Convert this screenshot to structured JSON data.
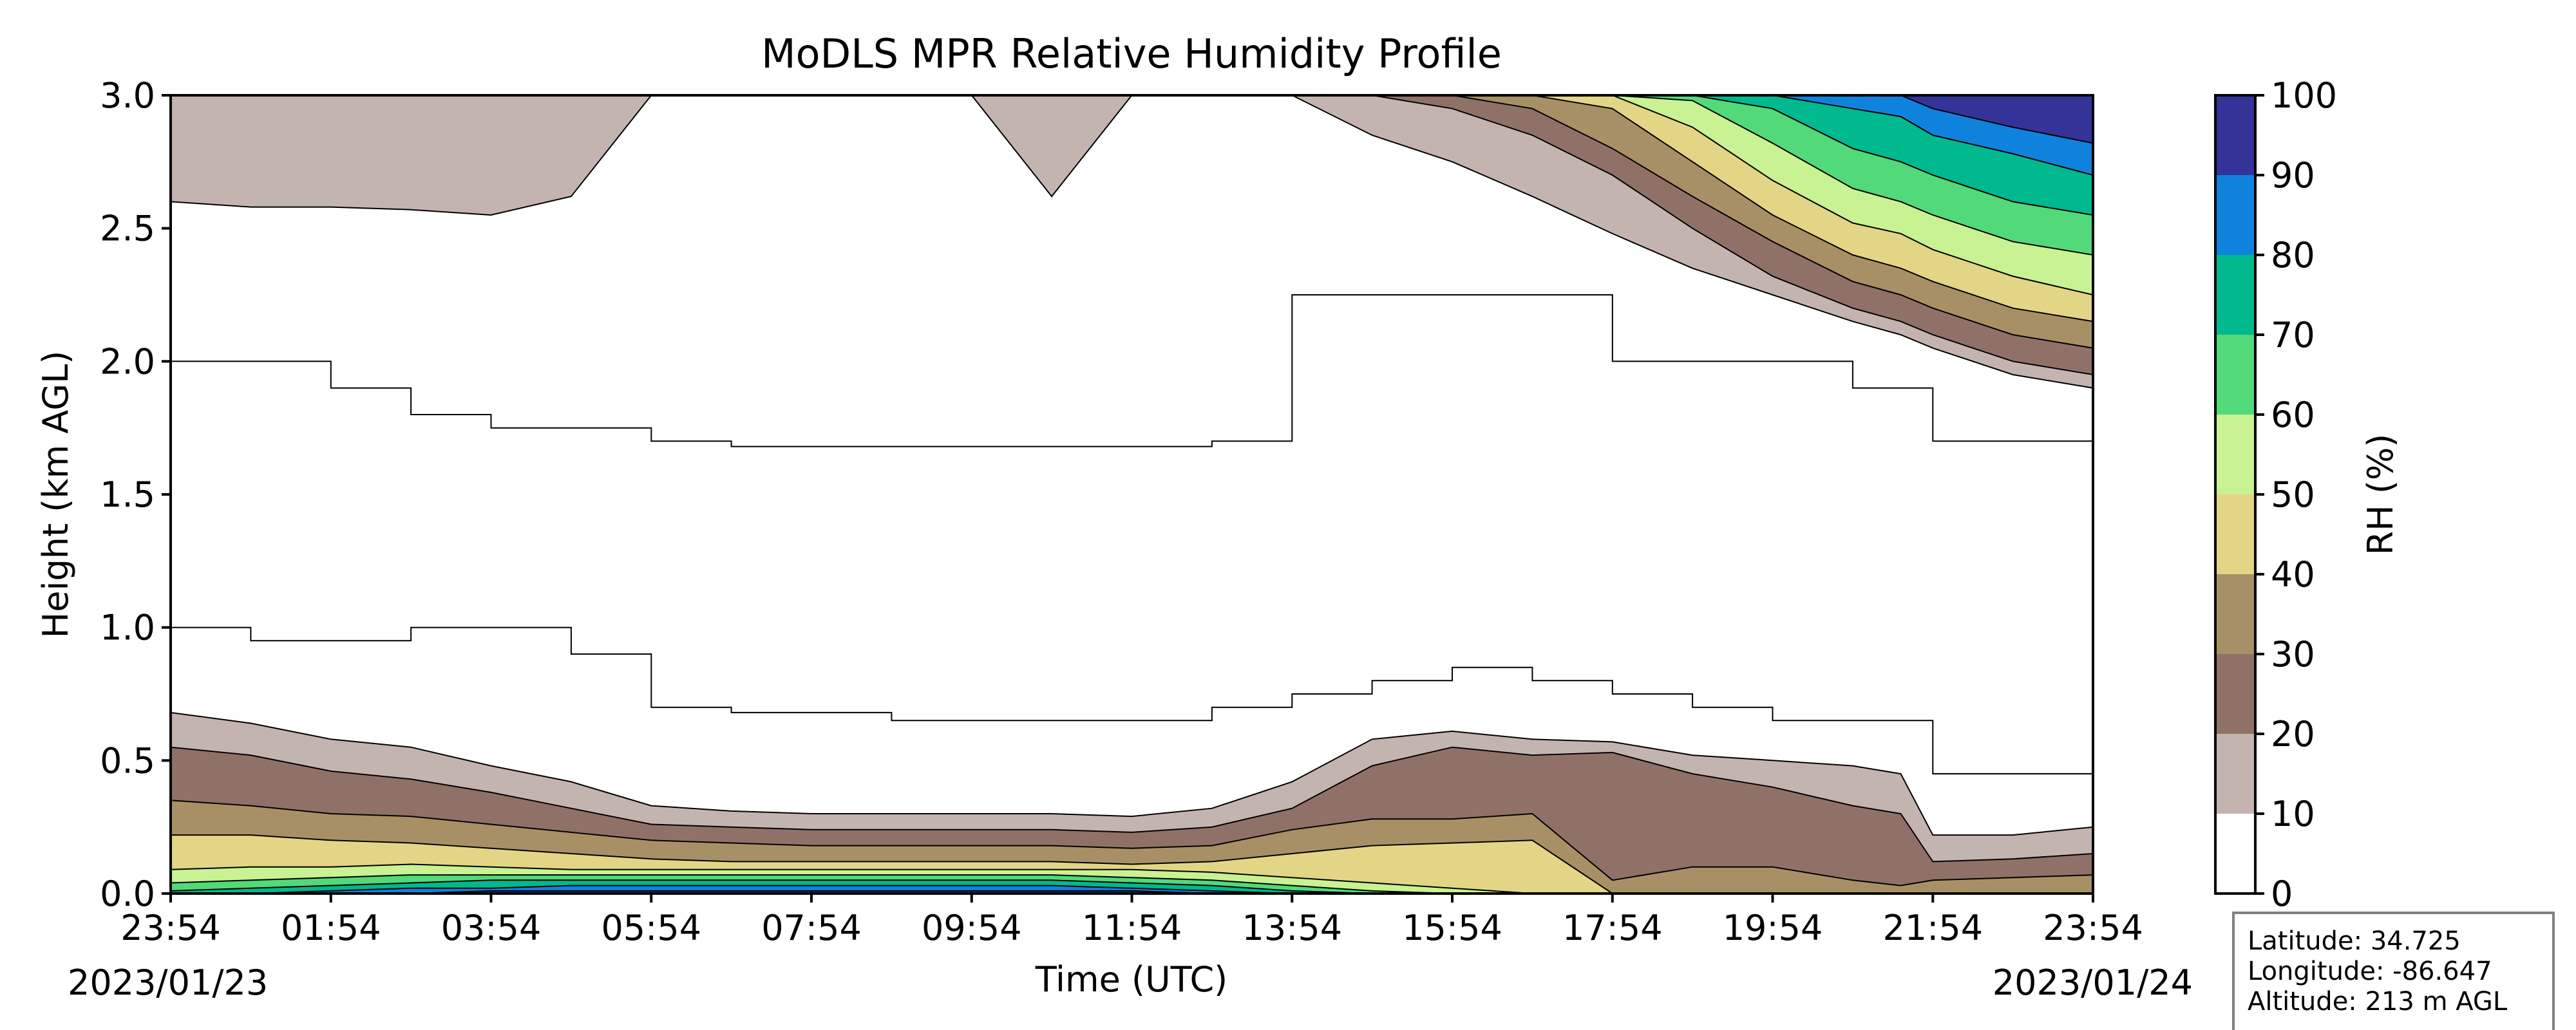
{
  "chart_data": {
    "type": "heatmap",
    "title": "MoDLS MPR Relative Humidity Profile",
    "xlabel": "Time (UTC)",
    "ylabel": "Height (km AGL)",
    "ylim": [
      0,
      3.0
    ],
    "xlim": [
      "2023/01/23 23:54",
      "2023/01/24 23:54"
    ],
    "x_tick_labels": [
      "23:54",
      "01:54",
      "03:54",
      "05:54",
      "07:54",
      "09:54",
      "11:54",
      "13:54",
      "15:54",
      "17:54",
      "19:54",
      "21:54",
      "23:54"
    ],
    "y_tick_labels": [
      "0.0",
      "0.5",
      "1.0",
      "1.5",
      "2.0",
      "2.5",
      "3.0"
    ],
    "date_start": "2023/01/23",
    "date_end": "2023/01/24",
    "colorbar": {
      "label": "RH (%)",
      "tick_labels": [
        "0",
        "10",
        "20",
        "30",
        "40",
        "50",
        "60",
        "70",
        "80",
        "90",
        "100"
      ],
      "levels": [
        0,
        10,
        20,
        30,
        40,
        50,
        60,
        70,
        80,
        90,
        100
      ],
      "colors": [
        "#ffffff",
        "#c4b4b0",
        "#8f7167",
        "#a89066",
        "#e2d686",
        "#c9f293",
        "#52d97a",
        "#00b98e",
        "#0f82de",
        "#333399"
      ]
    },
    "info_box": {
      "latitude": "Latitude: 34.725",
      "longitude": "Longitude: -86.647",
      "altitude": "Altitude: 213 m AGL"
    },
    "contour_tops_km": {
      "hours": [
        0,
        1,
        2,
        3,
        4,
        5,
        6,
        7,
        8,
        9,
        10,
        11,
        12,
        13,
        14,
        15,
        16,
        17,
        18,
        19,
        20,
        21,
        21.6,
        22,
        23,
        24
      ],
      "rh_10": [
        0.68,
        0.64,
        0.58,
        0.55,
        0.48,
        0.42,
        0.33,
        0.31,
        0.3,
        0.3,
        0.3,
        0.3,
        0.29,
        0.32,
        0.42,
        0.58,
        0.61,
        0.58,
        0.57,
        0.52,
        0.5,
        0.48,
        0.45,
        0.22,
        0.22,
        0.25
      ],
      "rh_20": [
        0.55,
        0.52,
        0.46,
        0.43,
        0.38,
        0.32,
        0.26,
        0.25,
        0.24,
        0.24,
        0.24,
        0.24,
        0.23,
        0.25,
        0.32,
        0.48,
        0.55,
        0.52,
        0.53,
        0.45,
        0.4,
        0.33,
        0.3,
        0.12,
        0.13,
        0.15
      ],
      "rh_30": [
        0.35,
        0.33,
        0.3,
        0.29,
        0.26,
        0.23,
        0.2,
        0.19,
        0.18,
        0.18,
        0.18,
        0.18,
        0.17,
        0.18,
        0.24,
        0.28,
        0.28,
        0.3,
        0.05,
        0.1,
        0.1,
        0.05,
        0.03,
        0.05,
        0.06,
        0.07
      ],
      "rh_40": [
        0.22,
        0.22,
        0.2,
        0.19,
        0.17,
        0.15,
        0.13,
        0.12,
        0.12,
        0.12,
        0.12,
        0.12,
        0.11,
        0.12,
        0.15,
        0.18,
        0.19,
        0.2,
        0,
        0,
        0,
        0,
        0,
        0,
        0,
        0
      ],
      "rh_50": [
        0.09,
        0.1,
        0.1,
        0.11,
        0.1,
        0.09,
        0.09,
        0.09,
        0.09,
        0.09,
        0.09,
        0.09,
        0.09,
        0.08,
        0.06,
        0.04,
        0.02,
        0,
        0,
        0,
        0,
        0,
        0,
        0,
        0,
        0
      ],
      "rh_60": [
        0.04,
        0.05,
        0.06,
        0.07,
        0.07,
        0.07,
        0.07,
        0.07,
        0.07,
        0.07,
        0.07,
        0.07,
        0.06,
        0.05,
        0.03,
        0.01,
        0,
        0,
        0,
        0,
        0,
        0,
        0,
        0,
        0,
        0
      ],
      "rh_70": [
        0.01,
        0.02,
        0.03,
        0.04,
        0.05,
        0.05,
        0.05,
        0.05,
        0.05,
        0.05,
        0.05,
        0.05,
        0.04,
        0.03,
        0.01,
        0,
        0,
        0,
        0,
        0,
        0,
        0,
        0,
        0,
        0,
        0
      ],
      "rh_80": [
        0,
        0,
        0.01,
        0.02,
        0.02,
        0.03,
        0.03,
        0.03,
        0.03,
        0.03,
        0.03,
        0.03,
        0.02,
        0.01,
        0,
        0,
        0,
        0,
        0,
        0,
        0,
        0,
        0,
        0,
        0,
        0
      ],
      "rh_90": [
        0,
        0,
        0,
        0,
        0.01,
        0.01,
        0.01,
        0.01,
        0.01,
        0.01,
        0.01,
        0.01,
        0.01,
        0,
        0,
        0,
        0,
        0,
        0,
        0,
        0,
        0,
        0,
        0,
        0,
        0
      ]
    },
    "upper_layers_km": {
      "hours": [
        0,
        1,
        2,
        3,
        4,
        5,
        6,
        7,
        8,
        9,
        10,
        11,
        12,
        13,
        14,
        15,
        16,
        17,
        18,
        19,
        20,
        21,
        21.6,
        22,
        23,
        24
      ],
      "rh_10_base": [
        2.6,
        2.58,
        2.58,
        2.57,
        2.55,
        2.62,
        3.0,
        3.0,
        3.0,
        3.0,
        3.0,
        2.62,
        3.0,
        3.0,
        3.0,
        2.85,
        2.75,
        2.62,
        2.48,
        2.35,
        2.25,
        2.15,
        2.1,
        2.05,
        1.95,
        1.9
      ],
      "rh_20_base": [
        3.0,
        3.0,
        3.0,
        3.0,
        3.0,
        3.0,
        3.0,
        3.0,
        3.0,
        3.0,
        3.0,
        3.0,
        3.0,
        3.0,
        3.0,
        3.0,
        2.95,
        2.85,
        2.7,
        2.5,
        2.32,
        2.2,
        2.15,
        2.1,
        2.0,
        1.95
      ],
      "rh_30_base": [
        3.0,
        3.0,
        3.0,
        3.0,
        3.0,
        3.0,
        3.0,
        3.0,
        3.0,
        3.0,
        3.0,
        3.0,
        3.0,
        3.0,
        3.0,
        3.0,
        3.0,
        2.95,
        2.8,
        2.62,
        2.45,
        2.3,
        2.25,
        2.2,
        2.1,
        2.05
      ],
      "rh_40_base": [
        3.0,
        3.0,
        3.0,
        3.0,
        3.0,
        3.0,
        3.0,
        3.0,
        3.0,
        3.0,
        3.0,
        3.0,
        3.0,
        3.0,
        3.0,
        3.0,
        3.0,
        3.0,
        2.95,
        2.75,
        2.55,
        2.4,
        2.35,
        2.3,
        2.2,
        2.15
      ],
      "rh_50_base": [
        3.0,
        3.0,
        3.0,
        3.0,
        3.0,
        3.0,
        3.0,
        3.0,
        3.0,
        3.0,
        3.0,
        3.0,
        3.0,
        3.0,
        3.0,
        3.0,
        3.0,
        3.0,
        3.0,
        2.88,
        2.68,
        2.52,
        2.48,
        2.42,
        2.32,
        2.25
      ],
      "rh_60_base": [
        3.0,
        3.0,
        3.0,
        3.0,
        3.0,
        3.0,
        3.0,
        3.0,
        3.0,
        3.0,
        3.0,
        3.0,
        3.0,
        3.0,
        3.0,
        3.0,
        3.0,
        3.0,
        3.0,
        2.98,
        2.82,
        2.65,
        2.6,
        2.55,
        2.45,
        2.4
      ],
      "rh_70_base": [
        3.0,
        3.0,
        3.0,
        3.0,
        3.0,
        3.0,
        3.0,
        3.0,
        3.0,
        3.0,
        3.0,
        3.0,
        3.0,
        3.0,
        3.0,
        3.0,
        3.0,
        3.0,
        3.0,
        3.0,
        2.95,
        2.8,
        2.75,
        2.7,
        2.6,
        2.55
      ],
      "rh_80_base": [
        3.0,
        3.0,
        3.0,
        3.0,
        3.0,
        3.0,
        3.0,
        3.0,
        3.0,
        3.0,
        3.0,
        3.0,
        3.0,
        3.0,
        3.0,
        3.0,
        3.0,
        3.0,
        3.0,
        3.0,
        3.0,
        2.95,
        2.92,
        2.85,
        2.78,
        2.7
      ],
      "rh_90_base": [
        3.0,
        3.0,
        3.0,
        3.0,
        3.0,
        3.0,
        3.0,
        3.0,
        3.0,
        3.0,
        3.0,
        3.0,
        3.0,
        3.0,
        3.0,
        3.0,
        3.0,
        3.0,
        3.0,
        3.0,
        3.0,
        3.0,
        3.0,
        2.95,
        2.88,
        2.82
      ]
    },
    "contour_lines_km": {
      "hours": [
        0,
        1,
        2,
        3,
        4,
        5,
        6,
        7,
        8,
        9,
        10,
        11,
        12,
        13,
        14,
        15,
        16,
        17,
        18,
        19,
        20,
        21,
        22,
        23,
        24
      ],
      "upper": [
        2.0,
        2.0,
        1.9,
        1.8,
        1.75,
        1.75,
        1.7,
        1.68,
        1.68,
        1.68,
        1.68,
        1.68,
        1.68,
        1.7,
        2.25,
        2.25,
        2.25,
        2.25,
        2.0,
        2.0,
        2.0,
        1.9,
        1.7,
        1.7,
        1.7
      ],
      "lower": [
        1.0,
        0.95,
        0.95,
        1.0,
        1.0,
        0.9,
        0.7,
        0.68,
        0.68,
        0.65,
        0.65,
        0.65,
        0.65,
        0.7,
        0.75,
        0.8,
        0.85,
        0.8,
        0.75,
        0.7,
        0.65,
        0.65,
        0.45,
        0.45,
        0.45
      ]
    },
    "grid": false,
    "legend": "colorbar right"
  }
}
